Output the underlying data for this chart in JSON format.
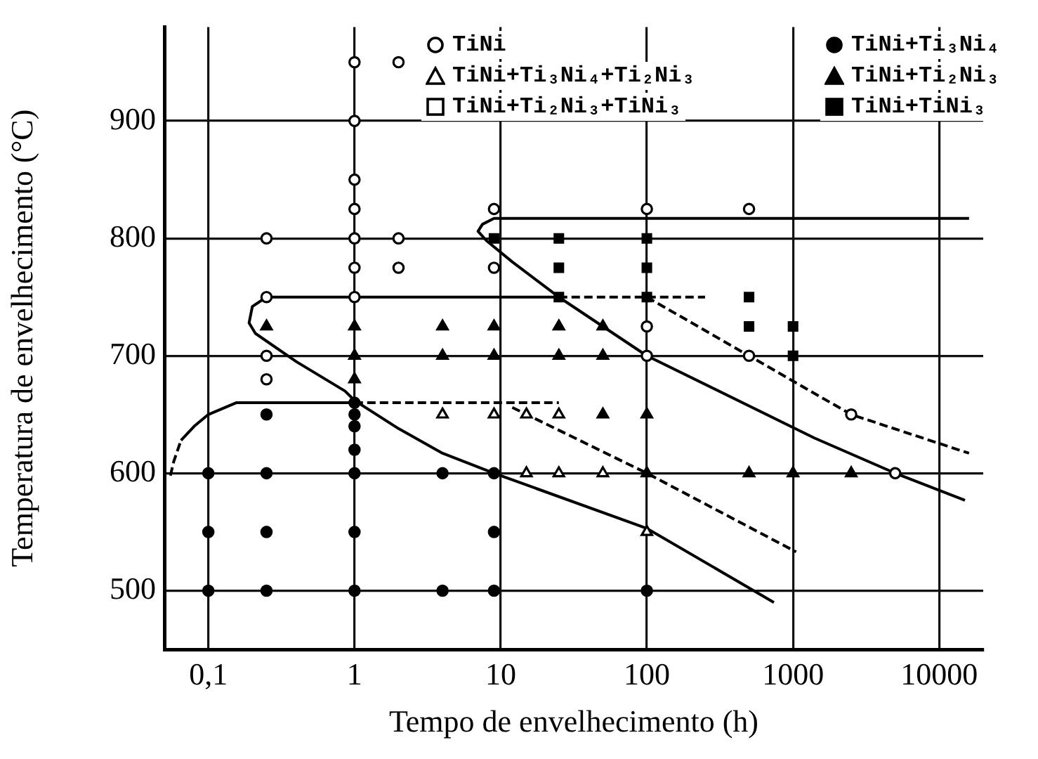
{
  "chart_data": {
    "type": "scatter",
    "xlabel": "Tempo de envelhecimento (h)",
    "ylabel": "Temperatura de envelhecimento (°C)",
    "log": "x",
    "grid": true,
    "legend": "top",
    "xlim": [
      0.05,
      20000
    ],
    "xticks": [
      {
        "value": 0.1,
        "label": "0,1"
      },
      1,
      10,
      100,
      1000,
      10000
    ],
    "ylim": [
      450,
      980
    ],
    "yticks": [
      500,
      600,
      700,
      800,
      900
    ],
    "series": [
      {
        "name": "TiNi",
        "type": "scatter",
        "marker": "circle",
        "color": "#ffffff",
        "x": [
          0.25,
          0.25,
          0.25,
          0.25,
          1,
          1,
          1,
          1,
          1,
          1,
          1,
          2,
          2,
          2,
          9,
          9,
          100,
          100,
          100,
          500,
          500,
          2500,
          5000
        ],
        "values": [
          800,
          750,
          700,
          680,
          950,
          900,
          850,
          825,
          800,
          775,
          750,
          950,
          800,
          775,
          825,
          775,
          825,
          725,
          700,
          825,
          700,
          650,
          600
        ]
      },
      {
        "name": "TiNi+Ti₃Ni₄+Ti₂Ni₃",
        "type": "scatter",
        "marker": "triangle",
        "color": "#ffffff",
        "x": [
          4,
          9,
          15,
          25,
          15,
          25,
          50,
          100
        ],
        "values": [
          650,
          650,
          650,
          650,
          600,
          600,
          600,
          550
        ]
      },
      {
        "name": "TiNi+Ti₂Ni₃+TiNi₃",
        "type": "scatter",
        "marker": "square",
        "color": "#ffffff"
      },
      {
        "name": "TiNi+Ti₃Ni₄",
        "type": "scatter",
        "marker": "circle",
        "color": "#000000",
        "x": [
          0.1,
          0.1,
          0.1,
          0.25,
          0.25,
          0.25,
          0.25,
          1,
          1,
          1,
          1,
          1,
          1,
          1,
          4,
          4,
          9,
          9,
          9,
          100
        ],
        "values": [
          600,
          550,
          500,
          650,
          600,
          550,
          500,
          660,
          650,
          640,
          620,
          600,
          550,
          500,
          600,
          500,
          600,
          550,
          500,
          500
        ]
      },
      {
        "name": "TiNi+Ti₂Ni₃",
        "type": "scatter",
        "marker": "triangle",
        "color": "#000000",
        "x": [
          0.25,
          1,
          1,
          1,
          4,
          4,
          9,
          9,
          25,
          25,
          50,
          50,
          50,
          100,
          100,
          500,
          1000,
          2500
        ],
        "values": [
          725,
          725,
          700,
          680,
          725,
          700,
          725,
          700,
          725,
          700,
          725,
          700,
          650,
          650,
          600,
          600,
          600,
          600
        ]
      },
      {
        "name": "TiNi+TiNi₃",
        "type": "scatter",
        "marker": "square",
        "color": "#000000",
        "x": [
          9,
          25,
          25,
          25,
          100,
          100,
          100,
          500,
          500,
          1000,
          1000
        ],
        "values": [
          800,
          800,
          775,
          750,
          800,
          775,
          750,
          750,
          725,
          725,
          700
        ]
      },
      {
        "type": "line",
        "marker": "none",
        "line_style": "solid",
        "color": "#000000",
        "x": [
          0.25,
          25
        ],
        "values": [
          750,
          750
        ]
      },
      {
        "type": "line",
        "marker": "none",
        "line_style": "solid",
        "color": "#000000",
        "x": [
          0.25,
          0.2,
          0.19,
          0.21,
          0.4,
          0.86,
          1,
          2,
          4,
          9,
          100,
          740
        ],
        "values": [
          750,
          742,
          728,
          719,
          695,
          670,
          662,
          638,
          617,
          600,
          553,
          490
        ]
      },
      {
        "type": "line",
        "marker": "none",
        "line_style": "solid",
        "color": "#000000",
        "x": [
          0.065,
          0.08,
          0.1,
          0.155,
          1
        ],
        "values": [
          628,
          640,
          650,
          660,
          660
        ]
      },
      {
        "type": "line",
        "marker": "none",
        "line_style": "dashed",
        "color": "#000000",
        "x": [
          0.055,
          0.058,
          0.065
        ],
        "values": [
          598,
          610,
          628
        ]
      },
      {
        "type": "line",
        "marker": "none",
        "line_style": "dashed",
        "color": "#000000",
        "x": [
          1,
          25
        ],
        "values": [
          660,
          660
        ]
      },
      {
        "type": "line",
        "marker": "none",
        "line_style": "dashed",
        "color": "#000000",
        "x": [
          12,
          100,
          1050
        ],
        "values": [
          656,
          600,
          533
        ]
      },
      {
        "type": "line",
        "marker": "none",
        "line_style": "dashed",
        "color": "#000000",
        "x": [
          25,
          250
        ],
        "values": [
          750,
          750
        ]
      },
      {
        "type": "line",
        "marker": "none",
        "line_style": "dashed",
        "color": "#000000",
        "x": [
          100,
          500,
          2500,
          16000
        ],
        "values": [
          750,
          700,
          650,
          617
        ]
      },
      {
        "type": "line",
        "marker": "none",
        "line_style": "solid",
        "color": "#000000",
        "x": [
          16000,
          9,
          7.5,
          7,
          8,
          12,
          25,
          100,
          1400,
          5000,
          15000
        ],
        "values": [
          817,
          817,
          812,
          806,
          798,
          780,
          750,
          700,
          630,
          600,
          577
        ]
      }
    ]
  }
}
